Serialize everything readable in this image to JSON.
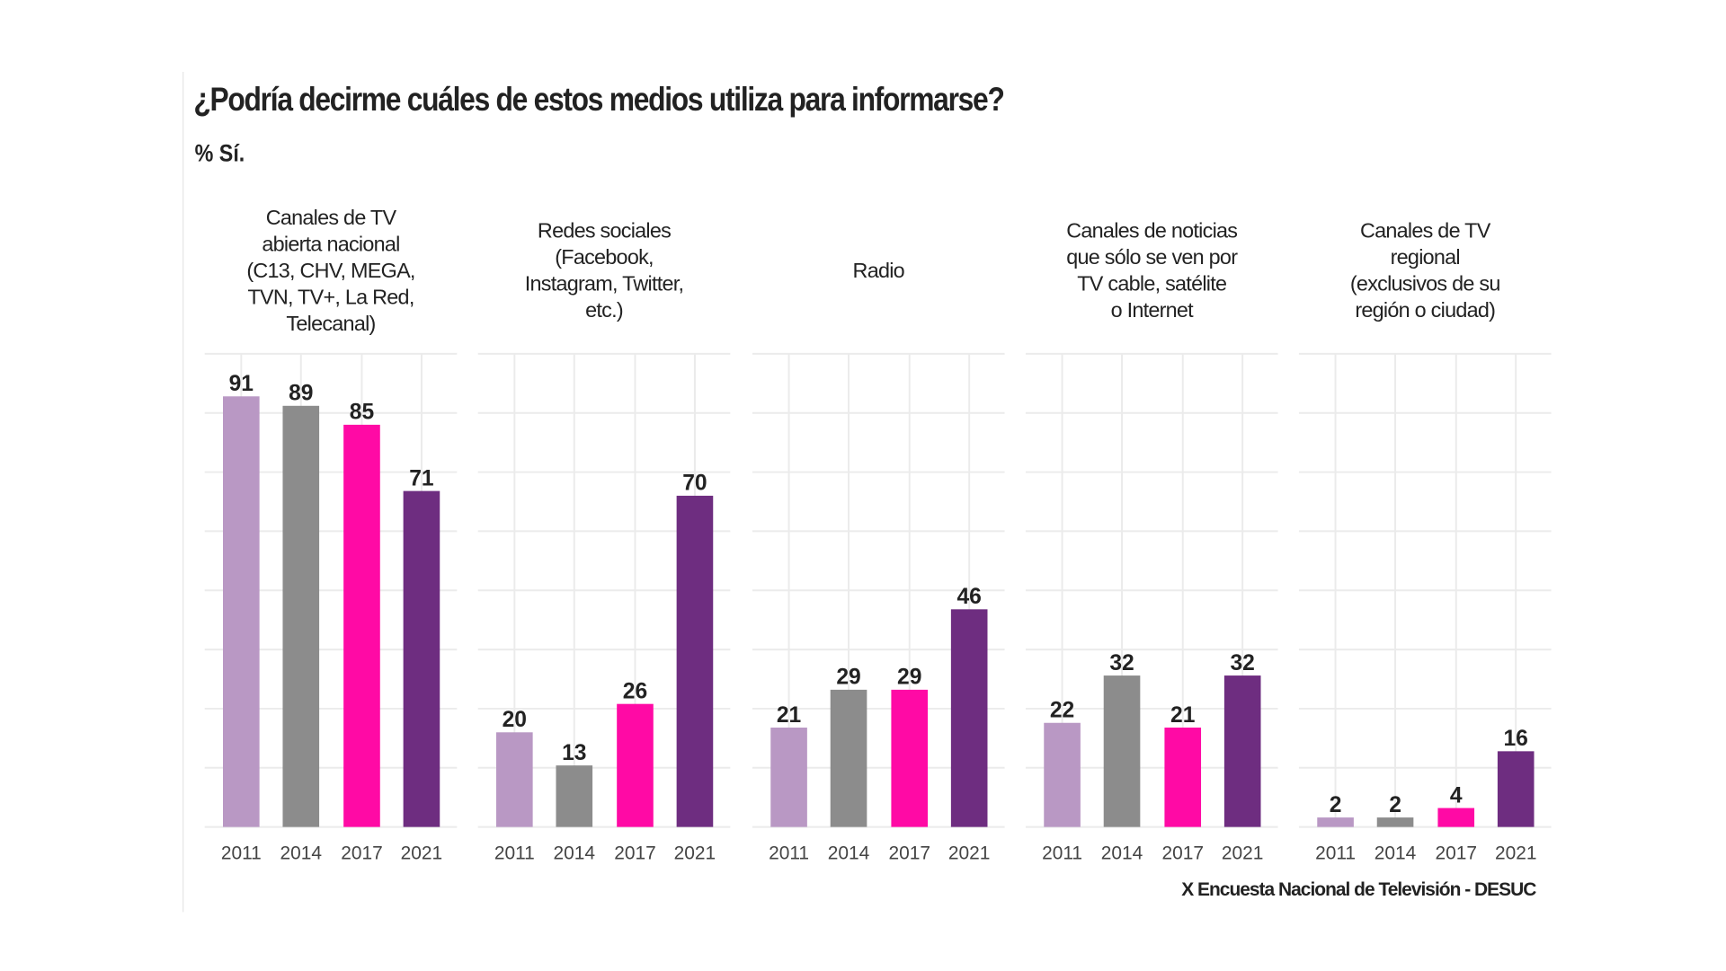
{
  "chart_data": {
    "type": "bar",
    "title": "¿Podría decirme cuáles de estos medios utiliza para informarse?",
    "subtitle": "% Sí.",
    "source": "X Encuesta Nacional de Televisión - DESUC",
    "ylim": [
      0,
      100
    ],
    "grid": true,
    "legend": "none",
    "categories": [
      "2011",
      "2014",
      "2017",
      "2021"
    ],
    "colors": {
      "2011": "#b998c4",
      "2014": "#8c8c8c",
      "2017": "#ff0aa5",
      "2021": "#6e2d80"
    },
    "facets": [
      {
        "label": [
          "Canales de TV",
          "abierta nacional",
          "(C13, CHV,  MEGA,",
          "TVN, TV+, La Red,",
          "Telecanal)"
        ],
        "values": [
          91,
          89,
          85,
          71
        ]
      },
      {
        "label": [
          "Redes sociales",
          "(Facebook,",
          "Instagram, Twitter,",
          "etc.)"
        ],
        "values": [
          20,
          13,
          26,
          70
        ]
      },
      {
        "label": [
          "Radio"
        ],
        "values": [
          21,
          29,
          29,
          46
        ]
      },
      {
        "label": [
          "Canales de noticias",
          "que sólo se ven por",
          "TV cable, satélite",
          "o Internet"
        ],
        "values": [
          22,
          32,
          21,
          32
        ]
      },
      {
        "label": [
          "Canales de TV",
          "regional",
          "(exclusivos de su",
          "región o ciudad)"
        ],
        "values": [
          2,
          2,
          4,
          16
        ]
      }
    ]
  }
}
